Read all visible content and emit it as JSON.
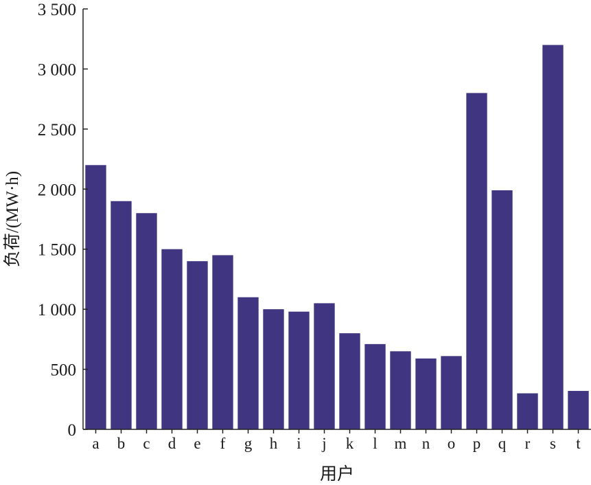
{
  "chart_data": {
    "type": "bar",
    "categories": [
      "a",
      "b",
      "c",
      "d",
      "e",
      "f",
      "g",
      "h",
      "i",
      "j",
      "k",
      "l",
      "m",
      "n",
      "o",
      "p",
      "q",
      "r",
      "s",
      "t"
    ],
    "values": [
      2200,
      1900,
      1800,
      1500,
      1400,
      1450,
      1100,
      1000,
      980,
      1050,
      800,
      710,
      650,
      590,
      610,
      2800,
      1990,
      300,
      3200,
      320
    ],
    "ylim": [
      0,
      3500
    ],
    "yticks": [
      0,
      500,
      1000,
      1500,
      2000,
      2500,
      3000,
      3500
    ],
    "ytick_labels": [
      "0",
      "500",
      "1 000",
      "1 500",
      "2 000",
      "2 500",
      "3 000",
      "3 500"
    ],
    "xlabel": "用户",
    "ylabel": "负荷/(MW·h)",
    "bar_color": "#3f3580",
    "grid": false,
    "legend": "none"
  }
}
